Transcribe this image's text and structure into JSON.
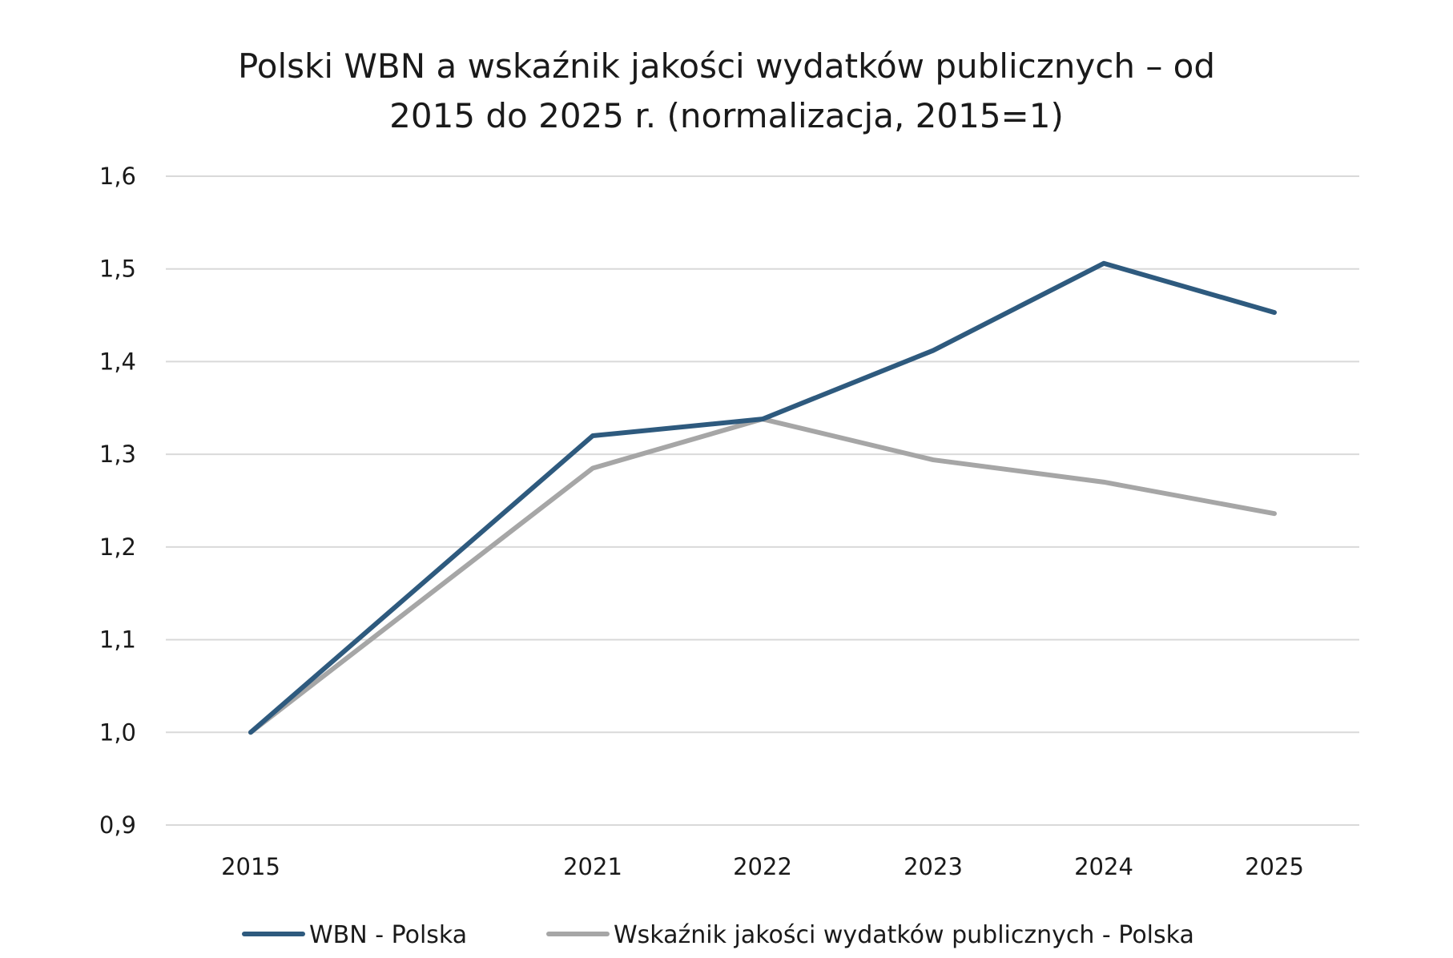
{
  "chart_data": {
    "type": "line",
    "title": "Polski WBN a wskaźnik jakości wydatków publicznych – od 2015 do 2025 r. (normalizacja, 2015=1)",
    "title_lines": [
      "Polski WBN a wskaźnik jakości wydatków publicznych – od",
      "2015 do 2025 r. (normalizacja, 2015=1)"
    ],
    "xlabel": "",
    "ylabel": "",
    "x": [
      2015,
      2021,
      2022,
      2023,
      2024,
      2025
    ],
    "x_tick_labels": [
      "2015",
      "2021",
      "2022",
      "2023",
      "2024",
      "2025"
    ],
    "ylim": [
      0.9,
      1.6
    ],
    "y_ticks": [
      0.9,
      1.0,
      1.1,
      1.2,
      1.3,
      1.4,
      1.5,
      1.6
    ],
    "y_tick_labels": [
      "0,9",
      "1,0",
      "1,1",
      "1,2",
      "1,3",
      "1,4",
      "1,5",
      "1,6"
    ],
    "grid": true,
    "legend_position": "bottom",
    "series": [
      {
        "name": "WBN - Polska",
        "color": "#2e5a7e",
        "values": [
          1.0,
          1.32,
          1.338,
          1.412,
          1.506,
          1.453
        ]
      },
      {
        "name": "Wskaźnik jakości wydatków publicznych - Polska",
        "color": "#a6a6a6",
        "values": [
          1.0,
          1.285,
          1.338,
          1.294,
          1.27,
          1.236
        ]
      }
    ]
  }
}
